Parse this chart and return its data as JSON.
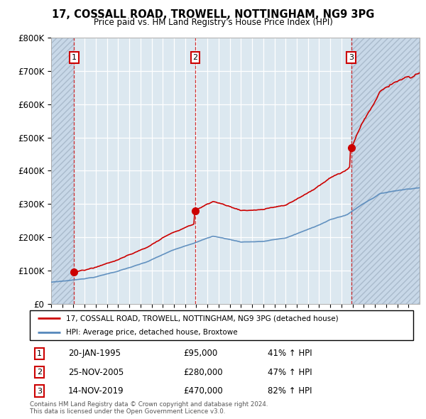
{
  "title": "17, COSSALL ROAD, TROWELL, NOTTINGHAM, NG9 3PG",
  "subtitle": "Price paid vs. HM Land Registry's House Price Index (HPI)",
  "sales": [
    {
      "date": "1995-01-20",
      "price": 95000,
      "label": "1",
      "time": 1995.05
    },
    {
      "date": "2005-11-25",
      "price": 280000,
      "label": "2",
      "time": 2005.9
    },
    {
      "date": "2019-11-14",
      "price": 470000,
      "label": "3",
      "time": 2019.87
    }
  ],
  "sale_pct": [
    "41% ↑ HPI",
    "47% ↑ HPI",
    "82% ↑ HPI"
  ],
  "sale_dates_display": [
    "20-JAN-1995",
    "25-NOV-2005",
    "14-NOV-2019"
  ],
  "sale_prices_display": [
    "£95,000",
    "£280,000",
    "£470,000"
  ],
  "legend_line1": "17, COSSALL ROAD, TROWELL, NOTTINGHAM, NG9 3PG (detached house)",
  "legend_line2": "HPI: Average price, detached house, Broxtowe",
  "footer1": "Contains HM Land Registry data © Crown copyright and database right 2024.",
  "footer2": "This data is licensed under the Open Government Licence v3.0.",
  "property_color": "#cc0000",
  "hpi_color": "#5588bb",
  "ylim": [
    0,
    800000
  ],
  "yticks": [
    0,
    100000,
    200000,
    300000,
    400000,
    500000,
    600000,
    700000,
    800000
  ],
  "ytick_labels": [
    "£0",
    "£100K",
    "£200K",
    "£300K",
    "£400K",
    "£500K",
    "£600K",
    "£700K",
    "£800K"
  ],
  "xstart": 1993.0,
  "xend": 2026.0,
  "hatch_color": "#c8d8e8",
  "chart_bg": "#dce8f0"
}
